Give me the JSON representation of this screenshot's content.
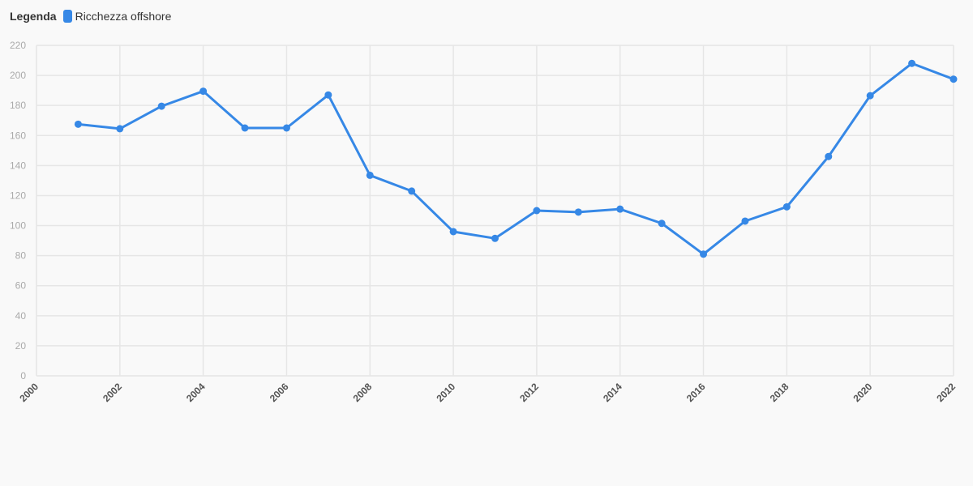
{
  "legend": {
    "title": "Legenda",
    "items": [
      {
        "label": "Ricchezza offshore",
        "color": "#3688e6"
      }
    ]
  },
  "chart_data": {
    "type": "line",
    "x": [
      2001,
      2002,
      2003,
      2004,
      2005,
      2006,
      2007,
      2008,
      2009,
      2010,
      2011,
      2012,
      2013,
      2014,
      2015,
      2016,
      2017,
      2018,
      2019,
      2020,
      2021,
      2022
    ],
    "series": [
      {
        "name": "Ricchezza offshore",
        "color": "#3688e6",
        "values": [
          167.5,
          164.5,
          179.5,
          189.5,
          165,
          165,
          187,
          133.5,
          123,
          96,
          91.5,
          110,
          109,
          111,
          101.5,
          81,
          103,
          112.5,
          146,
          186.5,
          208,
          197.5
        ]
      }
    ],
    "xlim": [
      2000,
      2022
    ],
    "ylim": [
      0,
      220
    ],
    "x_ticks": [
      "2000",
      "2002",
      "2004",
      "2006",
      "2008",
      "2010",
      "2012",
      "2014",
      "2016",
      "2018",
      "2020",
      "2022"
    ],
    "y_ticks": [
      "0",
      "20",
      "40",
      "60",
      "80",
      "100",
      "120",
      "140",
      "160",
      "180",
      "200",
      "220"
    ],
    "grid": true,
    "legend_position": "top-left",
    "xlabel": "",
    "ylabel": ""
  }
}
